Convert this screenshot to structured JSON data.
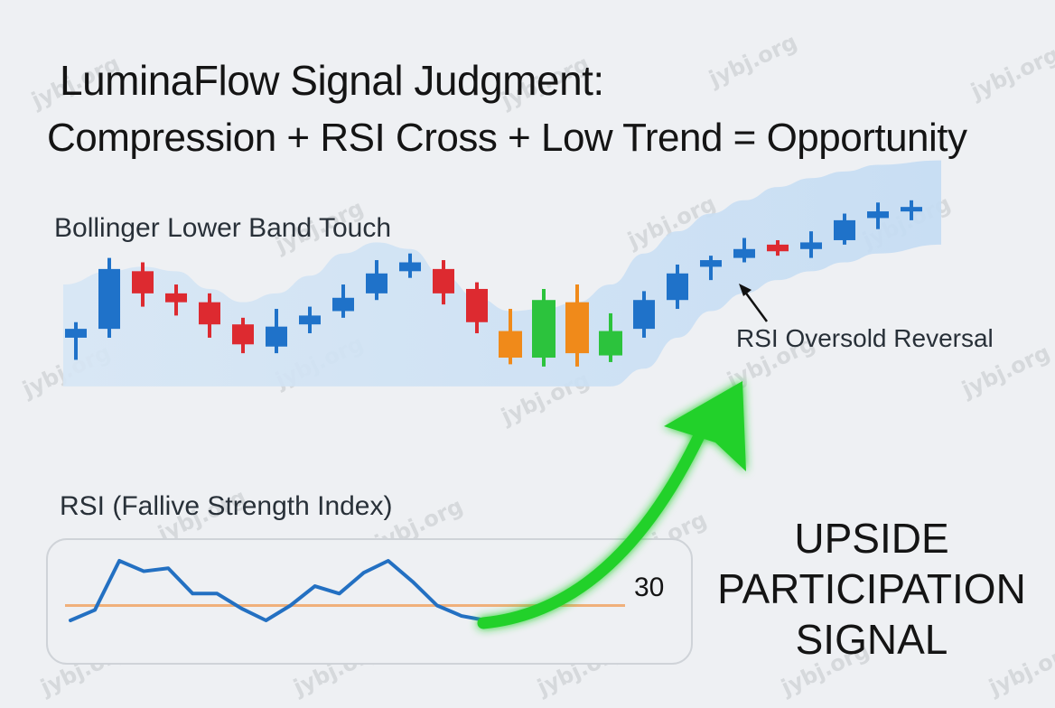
{
  "title": "LuminaFlow Signal Judgment:",
  "subtitle": "Compression + RSI Cross + Low Trend = Opportunity",
  "labels": {
    "band_touch": "Bollinger Lower Band Touch",
    "rsi_reversal": "RSI Oversold Reversal",
    "rsi_panel_title": "RSI (Fallive Strength Index)",
    "rsi_level": "30"
  },
  "signal_text": [
    "UPSIDE",
    "PARTICIPATION",
    "SIGNAL"
  ],
  "watermark": "jybj.org",
  "colors": {
    "background": "#eef0f3",
    "band": "#cfe2f4",
    "up": "#1f72c9",
    "down": "#dd2a30",
    "orange": "#f08a1a",
    "green": "#2cc33d",
    "rsi_line": "#2370c2",
    "level_line": "#f0b07a",
    "arrow": "#22d12a"
  },
  "chart_data": [
    {
      "type": "candlestick",
      "title": "",
      "candles": [
        {
          "open": 42,
          "high": 49,
          "low": 32,
          "close": 46,
          "color": "blue"
        },
        {
          "open": 46,
          "high": 78,
          "low": 42,
          "close": 73,
          "color": "blue"
        },
        {
          "open": 72,
          "high": 76,
          "low": 56,
          "close": 62,
          "color": "red"
        },
        {
          "open": 62,
          "high": 66,
          "low": 52,
          "close": 58,
          "color": "red"
        },
        {
          "open": 58,
          "high": 62,
          "low": 42,
          "close": 48,
          "color": "red"
        },
        {
          "open": 48,
          "high": 51,
          "low": 35,
          "close": 39,
          "color": "red"
        },
        {
          "open": 38,
          "high": 55,
          "low": 35,
          "close": 47,
          "color": "blue"
        },
        {
          "open": 48,
          "high": 56,
          "low": 44,
          "close": 52,
          "color": "blue"
        },
        {
          "open": 54,
          "high": 66,
          "low": 51,
          "close": 60,
          "color": "blue"
        },
        {
          "open": 62,
          "high": 77,
          "low": 59,
          "close": 71,
          "color": "blue"
        },
        {
          "open": 72,
          "high": 80,
          "low": 69,
          "close": 76,
          "color": "blue"
        },
        {
          "open": 73,
          "high": 77,
          "low": 57,
          "close": 62,
          "color": "red"
        },
        {
          "open": 64,
          "high": 67,
          "low": 44,
          "close": 49,
          "color": "red"
        },
        {
          "open": 45,
          "high": 55,
          "low": 30,
          "close": 33,
          "color": "orange"
        },
        {
          "open": 33,
          "high": 64,
          "low": 29,
          "close": 59,
          "color": "green"
        },
        {
          "open": 58,
          "high": 66,
          "low": 29,
          "close": 35,
          "color": "orange"
        },
        {
          "open": 34,
          "high": 53,
          "low": 31,
          "close": 45,
          "color": "green"
        },
        {
          "open": 46,
          "high": 63,
          "low": 42,
          "close": 59,
          "color": "blue"
        },
        {
          "open": 59,
          "high": 75,
          "low": 55,
          "close": 71,
          "color": "blue"
        },
        {
          "open": 74,
          "high": 79,
          "low": 68,
          "close": 77,
          "color": "blue"
        },
        {
          "open": 78,
          "high": 87,
          "low": 76,
          "close": 82,
          "color": "blue"
        },
        {
          "open": 84,
          "high": 86,
          "low": 79,
          "close": 81,
          "color": "red"
        },
        {
          "open": 82,
          "high": 90,
          "low": 78,
          "close": 85,
          "color": "blue"
        },
        {
          "open": 86,
          "high": 98,
          "low": 84,
          "close": 95,
          "color": "blue"
        },
        {
          "open": 96,
          "high": 103,
          "low": 91,
          "close": 99,
          "color": "blue"
        },
        {
          "open": 99,
          "high": 104,
          "low": 95,
          "close": 101,
          "color": "blue"
        }
      ],
      "bollinger_band": {
        "upper": [
          66,
          72,
          74,
          72,
          64,
          58,
          62,
          70,
          80,
          85,
          82,
          70,
          60,
          54,
          55,
          58,
          66,
          80,
          90,
          98,
          104,
          110,
          114,
          117,
          120,
          122
        ],
        "lower": [
          20,
          20,
          20,
          20,
          20,
          20,
          20,
          20,
          20,
          20,
          20,
          20,
          20,
          20,
          20,
          20,
          20,
          28,
          42,
          54,
          62,
          68,
          72,
          76,
          80,
          84
        ]
      },
      "ylim": [
        0,
        130
      ]
    },
    {
      "type": "line",
      "title": "RSI (Fallive Strength Index)",
      "x": [
        0,
        1,
        2,
        3,
        4,
        5,
        6,
        7,
        8,
        9,
        10,
        11,
        12,
        13,
        14,
        15,
        16,
        17
      ],
      "series": [
        {
          "values": [
            20,
            27,
            60,
            53,
            55,
            38,
            38,
            28,
            20,
            30,
            43,
            38,
            52,
            60,
            46,
            30,
            23,
            20
          ]
        }
      ],
      "reference_line": {
        "value": 30,
        "label": "30"
      },
      "ylim": [
        0,
        80
      ]
    }
  ]
}
